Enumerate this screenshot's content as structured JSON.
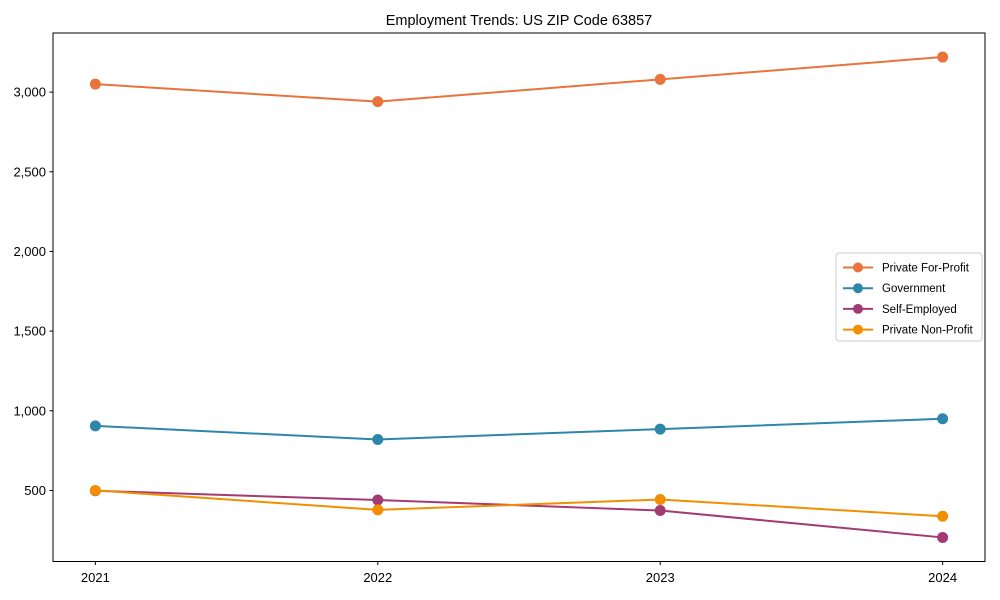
{
  "chart_data": {
    "type": "line",
    "title": "Employment Trends: US ZIP Code 63857",
    "x": [
      2021,
      2022,
      2023,
      2024
    ],
    "x_tick_labels": [
      "2021",
      "2022",
      "2023",
      "2024"
    ],
    "series": [
      {
        "name": "Private For-Profit",
        "color": "#E8743B",
        "values": [
          3050,
          2940,
          3080,
          3220
        ]
      },
      {
        "name": "Government",
        "color": "#2E86AB",
        "values": [
          905,
          820,
          885,
          950
        ]
      },
      {
        "name": "Self-Employed",
        "color": "#A23B72",
        "values": [
          498,
          440,
          374,
          205
        ]
      },
      {
        "name": "Private Non-Profit",
        "color": "#F18F01",
        "values": [
          500,
          378,
          443,
          338
        ]
      }
    ],
    "yticks": [
      500,
      1000,
      1500,
      2000,
      2500,
      3000
    ],
    "ytick_labels": [
      "500",
      "1,000",
      "1,500",
      "2,000",
      "2,500",
      "3,000"
    ],
    "ylim": [
      54,
      3371
    ],
    "xlim": [
      2020.85,
      2024.15
    ],
    "legend_position": "center right",
    "grid": false,
    "marker": "o",
    "axis_color": "#000000",
    "text_color": "#000000",
    "background": "#ffffff"
  }
}
